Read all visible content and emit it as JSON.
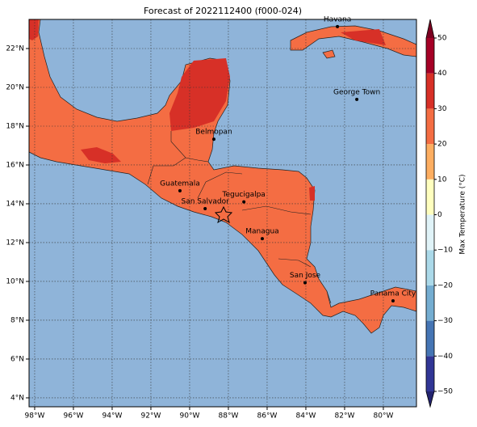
{
  "chart_data": {
    "type": "map",
    "title": "Forecast of 2022112400 (f000-024)",
    "xlim": [
      -98.29,
      -78.29
    ],
    "ylim": [
      3.54,
      23.5
    ],
    "xticks": [
      {
        "value": -98,
        "label": "98°W"
      },
      {
        "value": -96,
        "label": "96°W"
      },
      {
        "value": -94,
        "label": "94°W"
      },
      {
        "value": -92,
        "label": "92°W"
      },
      {
        "value": -90,
        "label": "90°W"
      },
      {
        "value": -88,
        "label": "88°W"
      },
      {
        "value": -86,
        "label": "86°W"
      },
      {
        "value": -84,
        "label": "84°W"
      },
      {
        "value": -82,
        "label": "82°W"
      },
      {
        "value": -80,
        "label": "80°W"
      }
    ],
    "yticks": [
      {
        "value": 4,
        "label": "4°N"
      },
      {
        "value": 6,
        "label": "6°N"
      },
      {
        "value": 8,
        "label": "8°N"
      },
      {
        "value": 10,
        "label": "10°N"
      },
      {
        "value": 12,
        "label": "12°N"
      },
      {
        "value": 14,
        "label": "14°N"
      },
      {
        "value": 16,
        "label": "16°N"
      },
      {
        "value": 18,
        "label": "18°N"
      },
      {
        "value": 20,
        "label": "20°N"
      },
      {
        "value": 22,
        "label": "22°N"
      }
    ],
    "grid": true,
    "cities": [
      {
        "name": "Havana",
        "lon": -82.37,
        "lat": 23.13
      },
      {
        "name": "George Town",
        "lon": -81.37,
        "lat": 19.38
      },
      {
        "name": "Belmopan",
        "lon": -88.75,
        "lat": 17.33
      },
      {
        "name": "Guatemala",
        "lon": -90.5,
        "lat": 14.67
      },
      {
        "name": "San Salvador",
        "lon": -89.2,
        "lat": 13.75
      },
      {
        "name": "Tegucigalpa",
        "lon": -87.2,
        "lat": 14.1
      },
      {
        "name": "Managua",
        "lon": -86.25,
        "lat": 12.2
      },
      {
        "name": "San Jose",
        "lon": -84.04,
        "lat": 9.93
      },
      {
        "name": "Panama City",
        "lon": -79.5,
        "lat": 9.0
      }
    ],
    "colorbar": {
      "label": "Max Temperature (°C)",
      "ticks": [
        {
          "value": -50,
          "label": "−50"
        },
        {
          "value": -40,
          "label": "−40"
        },
        {
          "value": -30,
          "label": "−30"
        },
        {
          "value": -20,
          "label": "−20"
        },
        {
          "value": -10,
          "label": "−10"
        },
        0,
        10,
        20,
        30,
        40,
        50
      ],
      "colors": [
        "#313695",
        "#4575b4",
        "#74add1",
        "#abd9e9",
        "#e0f3f8",
        "#ffffbf",
        "#fdae61",
        "#f46d43",
        "#d73027",
        "#a50026"
      ],
      "under_color": "#23236e",
      "over_color": "#7a0020"
    }
  }
}
